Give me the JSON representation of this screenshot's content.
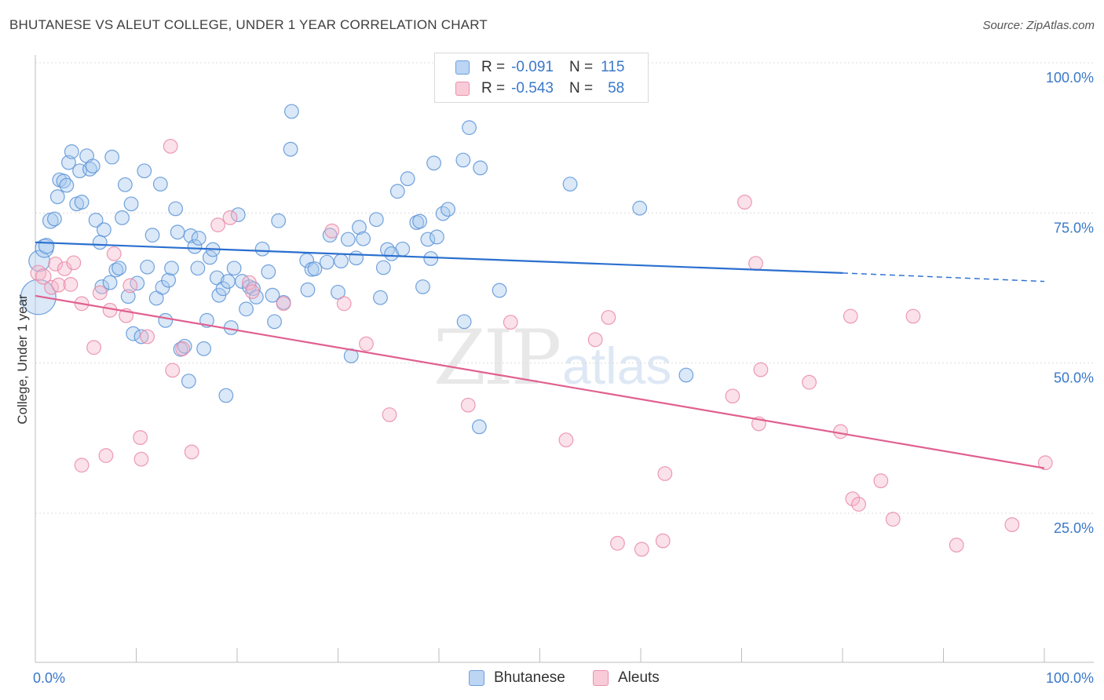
{
  "title": "BHUTANESE VS ALEUT COLLEGE, UNDER 1 YEAR CORRELATION CHART",
  "source": "Source: ZipAtlas.com",
  "watermark": {
    "zip": "ZIP",
    "atlas": "atlas"
  },
  "legend": {
    "rows": [
      {
        "r_label": "R = ",
        "r_value": "-0.091",
        "n_label": "N = ",
        "n_value": "115",
        "color": "#a8c8ee"
      },
      {
        "r_label": "R = ",
        "r_value": "-0.543",
        "n_label": "N = ",
        "n_value": "58",
        "color": "#f5b8cb"
      }
    ]
  },
  "bottom_legend": [
    {
      "label": "Bhutanese",
      "color": "#a8c8ee"
    },
    {
      "label": "Aleuts",
      "color": "#f5b8cb"
    }
  ],
  "chart_data": {
    "type": "scatter",
    "title": "BHUTANESE VS ALEUT COLLEGE, UNDER 1 YEAR CORRELATION CHART",
    "xlabel": "",
    "ylabel": "College, Under 1 year",
    "xlim": [
      0,
      100
    ],
    "ylim": [
      0,
      105
    ],
    "x_tick_labels": [
      "0.0%",
      "100.0%"
    ],
    "y_tick_labels": [
      "25.0%",
      "50.0%",
      "75.0%",
      "100.0%"
    ],
    "y_ticks": [
      25,
      50,
      75,
      100
    ],
    "grid": true,
    "legend_position": "top-center",
    "series": [
      {
        "name": "Bhutanese",
        "color": "#5b93d6",
        "fill": "#a8c8ee",
        "trend": {
          "x0": 0,
          "y0": 70.1,
          "x1": 80,
          "y1": 65.0,
          "x_dash_end": 100,
          "y_dash_end": 63.6,
          "color": "#2a6fcf"
        },
        "points": [
          [
            0.3,
            61.0,
            2.2
          ],
          [
            0.4,
            67.0,
            1.2
          ],
          [
            0.9,
            69.1,
            1.0
          ],
          [
            1.1,
            69.5,
            0.8
          ],
          [
            1.5,
            73.7,
            0.8
          ],
          [
            1.9,
            74.0,
            0.7
          ],
          [
            2.2,
            77.7,
            0.7
          ],
          [
            2.4,
            80.5,
            0.7
          ],
          [
            2.8,
            80.3,
            0.7
          ],
          [
            3.1,
            79.6,
            0.7
          ],
          [
            3.3,
            83.4,
            0.7
          ],
          [
            3.6,
            85.2,
            0.7
          ],
          [
            4.1,
            76.5,
            0.7
          ],
          [
            4.6,
            76.8,
            0.7
          ],
          [
            4.4,
            82.0,
            0.7
          ],
          [
            5.1,
            84.5,
            0.7
          ],
          [
            5.4,
            82.3,
            0.7
          ],
          [
            5.7,
            82.8,
            0.7
          ],
          [
            6.0,
            73.8,
            0.7
          ],
          [
            6.4,
            70.1,
            0.7
          ],
          [
            6.8,
            72.2,
            0.7
          ],
          [
            6.6,
            62.7,
            0.7
          ],
          [
            7.4,
            63.4,
            0.7
          ],
          [
            7.6,
            84.3,
            0.7
          ],
          [
            8.0,
            65.5,
            0.7
          ],
          [
            8.3,
            65.8,
            0.7
          ],
          [
            8.6,
            74.2,
            0.7
          ],
          [
            8.9,
            79.7,
            0.7
          ],
          [
            9.2,
            61.1,
            0.7
          ],
          [
            9.5,
            76.5,
            0.7
          ],
          [
            9.7,
            54.9,
            0.7
          ],
          [
            10.1,
            63.3,
            0.7
          ],
          [
            10.5,
            54.4,
            0.7
          ],
          [
            10.8,
            82.0,
            0.7
          ],
          [
            11.1,
            66.0,
            0.7
          ],
          [
            11.6,
            71.3,
            0.7
          ],
          [
            12.0,
            60.8,
            0.7
          ],
          [
            12.4,
            79.8,
            0.7
          ],
          [
            12.6,
            62.6,
            0.7
          ],
          [
            12.9,
            57.1,
            0.7
          ],
          [
            13.2,
            63.8,
            0.7
          ],
          [
            13.5,
            65.8,
            0.7
          ],
          [
            13.9,
            75.7,
            0.7
          ],
          [
            14.1,
            71.8,
            0.7
          ],
          [
            14.4,
            52.3,
            0.7
          ],
          [
            14.8,
            52.8,
            0.7
          ],
          [
            15.2,
            47.0,
            0.7
          ],
          [
            15.4,
            71.2,
            0.7
          ],
          [
            15.8,
            69.4,
            0.7
          ],
          [
            16.1,
            65.8,
            0.7
          ],
          [
            16.2,
            70.8,
            0.7
          ],
          [
            16.7,
            52.4,
            0.7
          ],
          [
            17.0,
            57.1,
            0.7
          ],
          [
            17.3,
            67.6,
            0.7
          ],
          [
            17.6,
            68.9,
            0.7
          ],
          [
            18.0,
            64.2,
            0.7
          ],
          [
            18.2,
            61.3,
            0.7
          ],
          [
            18.6,
            62.4,
            0.7
          ],
          [
            19.1,
            63.6,
            0.7
          ],
          [
            18.9,
            44.6,
            0.7
          ],
          [
            19.4,
            55.9,
            0.7
          ],
          [
            19.7,
            65.8,
            0.7
          ],
          [
            20.1,
            74.7,
            0.7
          ],
          [
            20.5,
            63.6,
            0.7
          ],
          [
            20.9,
            59.0,
            0.7
          ],
          [
            21.2,
            62.7,
            0.7
          ],
          [
            21.6,
            62.4,
            0.7
          ],
          [
            21.9,
            61.0,
            0.7
          ],
          [
            22.5,
            69.0,
            0.7
          ],
          [
            23.1,
            65.2,
            0.7
          ],
          [
            23.5,
            61.3,
            0.7
          ],
          [
            23.7,
            56.9,
            0.7
          ],
          [
            24.1,
            73.7,
            0.7
          ],
          [
            24.6,
            60.1,
            0.7
          ],
          [
            25.4,
            91.9,
            0.7
          ],
          [
            25.3,
            85.6,
            0.7
          ],
          [
            26.9,
            67.1,
            0.7
          ],
          [
            27.0,
            62.2,
            0.7
          ],
          [
            27.4,
            65.6,
            0.7
          ],
          [
            27.7,
            65.7,
            0.7
          ],
          [
            28.9,
            66.8,
            0.7
          ],
          [
            29.2,
            71.3,
            0.7
          ],
          [
            30.0,
            61.8,
            0.7
          ],
          [
            30.3,
            67.0,
            0.7
          ],
          [
            31.0,
            70.6,
            0.7
          ],
          [
            31.3,
            51.2,
            0.7
          ],
          [
            31.8,
            67.5,
            0.7
          ],
          [
            32.1,
            72.6,
            0.7
          ],
          [
            32.5,
            70.7,
            0.7
          ],
          [
            33.8,
            73.9,
            0.7
          ],
          [
            34.2,
            60.9,
            0.7
          ],
          [
            34.5,
            65.9,
            0.7
          ],
          [
            34.9,
            68.9,
            0.7
          ],
          [
            35.3,
            68.2,
            0.7
          ],
          [
            36.4,
            69.0,
            0.7
          ],
          [
            35.9,
            78.6,
            0.7
          ],
          [
            36.9,
            80.7,
            0.7
          ],
          [
            37.8,
            73.4,
            0.7
          ],
          [
            38.1,
            73.6,
            0.7
          ],
          [
            38.4,
            62.7,
            0.7
          ],
          [
            38.9,
            70.6,
            0.7
          ],
          [
            39.2,
            67.4,
            0.7
          ],
          [
            39.5,
            83.3,
            0.7
          ],
          [
            39.8,
            71.0,
            0.7
          ],
          [
            40.4,
            74.9,
            0.7
          ],
          [
            40.9,
            75.6,
            0.7
          ],
          [
            42.5,
            56.9,
            0.7
          ],
          [
            42.4,
            83.8,
            0.7
          ],
          [
            43.0,
            89.2,
            0.7
          ],
          [
            44.1,
            82.5,
            0.7
          ],
          [
            44.0,
            39.4,
            0.7
          ],
          [
            46.0,
            62.1,
            0.7
          ],
          [
            53.0,
            79.8,
            0.7
          ],
          [
            59.9,
            75.8,
            0.7
          ],
          [
            64.5,
            48.0,
            0.7
          ]
        ]
      },
      {
        "name": "Aleuts",
        "color": "#e98aa8",
        "fill": "#f5b8cb",
        "trend": {
          "x0": 0,
          "y0": 61.2,
          "x1": 100,
          "y1": 32.5,
          "color": "#e0608f"
        },
        "points": [
          [
            0.3,
            65.0,
            0.8
          ],
          [
            0.8,
            64.4,
            0.8
          ],
          [
            1.6,
            62.6,
            0.7
          ],
          [
            2.0,
            66.5,
            0.7
          ],
          [
            2.3,
            63.0,
            0.7
          ],
          [
            2.9,
            65.7,
            0.7
          ],
          [
            3.5,
            63.1,
            0.7
          ],
          [
            3.8,
            66.7,
            0.7
          ],
          [
            4.6,
            59.9,
            0.7
          ],
          [
            4.6,
            33.0,
            0.7
          ],
          [
            5.8,
            52.6,
            0.7
          ],
          [
            6.4,
            61.7,
            0.7
          ],
          [
            7.0,
            34.6,
            0.7
          ],
          [
            7.4,
            58.8,
            0.7
          ],
          [
            7.8,
            68.2,
            0.7
          ],
          [
            9.0,
            57.9,
            0.7
          ],
          [
            9.4,
            62.9,
            0.7
          ],
          [
            10.4,
            37.6,
            0.7
          ],
          [
            10.5,
            34.0,
            0.7
          ],
          [
            11.1,
            54.4,
            0.7
          ],
          [
            13.4,
            86.1,
            0.7
          ],
          [
            13.6,
            48.8,
            0.7
          ],
          [
            14.6,
            52.4,
            0.7
          ],
          [
            15.5,
            35.2,
            0.7
          ],
          [
            18.1,
            73.0,
            0.7
          ],
          [
            19.3,
            74.2,
            0.7
          ],
          [
            21.2,
            63.4,
            0.7
          ],
          [
            21.5,
            61.9,
            0.7
          ],
          [
            24.6,
            59.9,
            0.7
          ],
          [
            29.4,
            72.0,
            0.7
          ],
          [
            30.6,
            59.9,
            0.7
          ],
          [
            32.8,
            53.2,
            0.7
          ],
          [
            35.1,
            41.4,
            0.7
          ],
          [
            42.9,
            43.0,
            0.7
          ],
          [
            47.1,
            56.8,
            0.7
          ],
          [
            52.6,
            37.2,
            0.7
          ],
          [
            55.5,
            53.9,
            0.7
          ],
          [
            56.8,
            57.6,
            0.7
          ],
          [
            57.7,
            20.0,
            0.7
          ],
          [
            60.1,
            19.0,
            0.7
          ],
          [
            62.2,
            20.4,
            0.7
          ],
          [
            62.4,
            31.6,
            0.7
          ],
          [
            69.1,
            44.5,
            0.7
          ],
          [
            70.3,
            76.8,
            0.7
          ],
          [
            71.4,
            66.6,
            0.7
          ],
          [
            71.7,
            39.9,
            0.7
          ],
          [
            71.9,
            48.9,
            0.7
          ],
          [
            76.7,
            46.8,
            0.7
          ],
          [
            79.8,
            38.6,
            0.7
          ],
          [
            80.8,
            57.8,
            0.7
          ],
          [
            81.0,
            27.4,
            0.7
          ],
          [
            81.6,
            26.5,
            0.7
          ],
          [
            83.8,
            30.4,
            0.7
          ],
          [
            85.0,
            24.0,
            0.7
          ],
          [
            87.0,
            57.8,
            0.7
          ],
          [
            91.3,
            19.7,
            0.7
          ],
          [
            96.8,
            23.1,
            0.7
          ],
          [
            100.1,
            33.4,
            0.7
          ]
        ]
      }
    ]
  }
}
